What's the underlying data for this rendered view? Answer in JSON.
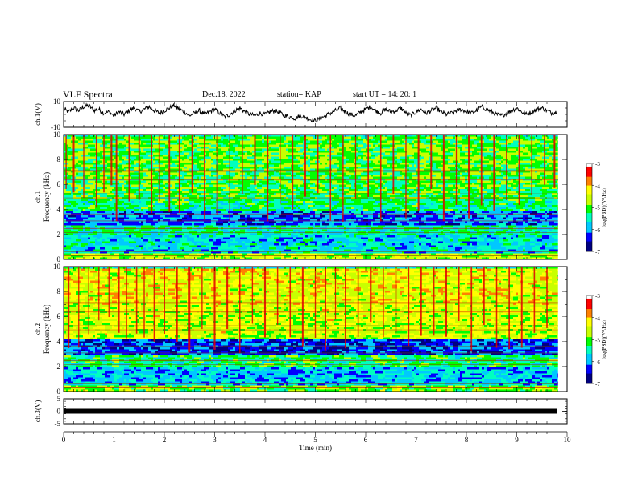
{
  "header": {
    "title": "VLF Spectra",
    "date": "Dec.18, 2022",
    "station": "station= KAP",
    "start": "start UT =  14: 20: 1"
  },
  "chart_data": [
    {
      "type": "line",
      "panel": "waveform-ch1",
      "ylabel": "ch.1(V)",
      "ylim": [
        -10,
        10
      ],
      "yticks": [
        "10",
        "-10"
      ],
      "xlim": [
        0,
        10
      ],
      "series": [
        {
          "x": [
            0,
            0.1,
            0.2,
            0.3,
            0.4,
            0.5,
            0.6,
            0.7,
            0.8,
            0.9,
            1.0,
            1.1,
            1.2,
            1.3,
            1.4,
            1.5,
            1.6,
            1.7,
            1.8,
            1.9,
            2.0,
            2.1,
            2.2,
            2.3,
            2.4,
            2.5,
            2.6,
            2.7,
            2.8,
            2.9,
            3.0,
            3.1,
            3.2,
            3.3,
            3.4,
            3.5,
            3.6,
            3.7,
            3.8,
            3.9,
            4.0,
            4.1,
            4.2,
            4.3,
            4.4,
            4.5,
            4.6,
            4.7,
            4.8,
            4.9,
            5.0,
            5.1,
            5.2,
            5.3,
            5.4,
            5.5,
            5.6,
            5.7,
            5.8,
            5.9,
            6.0,
            6.1,
            6.2,
            6.3,
            6.4,
            6.5,
            6.6,
            6.7,
            6.8,
            6.9,
            7.0,
            7.1,
            7.2,
            7.3,
            7.4,
            7.5,
            7.6,
            7.7,
            7.8,
            7.9,
            8.0,
            8.1,
            8.2,
            8.3,
            8.4,
            8.5,
            8.6,
            8.7,
            8.8,
            8.9,
            9.0,
            9.1,
            9.2,
            9.3,
            9.4,
            9.5,
            9.6,
            9.7,
            9.8
          ],
          "y": [
            4,
            2,
            5,
            3,
            6,
            7,
            3,
            4,
            1,
            2,
            -1,
            2,
            0,
            3,
            5,
            2,
            4,
            6,
            3,
            1,
            3,
            5,
            7,
            4,
            2,
            -1,
            1,
            3,
            0,
            2,
            4,
            1,
            -2,
            0,
            3,
            5,
            2,
            0,
            -1,
            1,
            0,
            2,
            3,
            1,
            -1,
            -2,
            -3,
            -1,
            -2,
            -4,
            -5,
            -3,
            -1,
            1,
            3,
            5,
            2,
            0,
            -1,
            2,
            4,
            6,
            3,
            1,
            4,
            2,
            3,
            5,
            1,
            -1,
            2,
            4,
            1,
            3,
            5,
            2,
            0,
            1,
            3,
            4,
            2,
            1,
            3,
            6,
            4,
            2,
            0,
            -1,
            1,
            3,
            5,
            2,
            0,
            2,
            4,
            5,
            3,
            1,
            2
          ]
        }
      ]
    },
    {
      "type": "heatmap",
      "panel": "spectrogram-ch1",
      "ylabel": "ch.1\nFrequency (kHz)",
      "ylim": [
        0,
        10
      ],
      "yticks": [
        "0",
        "2",
        "4",
        "6",
        "8",
        "10"
      ],
      "xlim": [
        0,
        10
      ],
      "colorbar": {
        "label": "log(PSD)(V²/Hz)",
        "range": [
          -7,
          -3
        ],
        "ticks": [
          "-3",
          "-4",
          "-5",
          "-6",
          "-7"
        ]
      },
      "band_levels": [
        {
          "f_min": 0,
          "f_max": 0.5,
          "level": 0.62
        },
        {
          "f_min": 0.5,
          "f_max": 2,
          "level": 0.33
        },
        {
          "f_min": 2,
          "f_max": 2.8,
          "level": 0.4
        },
        {
          "f_min": 2.8,
          "f_max": 4,
          "level": 0.22
        },
        {
          "f_min": 4,
          "f_max": 5,
          "level": 0.43
        },
        {
          "f_min": 5,
          "f_max": 7,
          "level": 0.5
        },
        {
          "f_min": 7,
          "f_max": 10,
          "level": 0.52
        }
      ],
      "impulse_times": [
        0.05,
        0.2,
        0.4,
        0.65,
        0.8,
        0.95,
        1.05,
        1.3,
        1.5,
        1.75,
        1.9,
        2.1,
        2.3,
        2.55,
        2.8,
        3.05,
        3.3,
        3.55,
        3.8,
        4.05,
        4.3,
        4.55,
        4.8,
        5.05,
        5.3,
        5.55,
        5.8,
        6.05,
        6.3,
        6.55,
        6.8,
        7.05,
        7.3,
        7.55,
        7.8,
        8.05,
        8.3,
        8.55,
        8.8,
        9.05,
        9.3,
        9.55,
        9.75
      ]
    },
    {
      "type": "heatmap",
      "panel": "spectrogram-ch2",
      "ylabel": "ch.2\nFrequency (kHz)",
      "ylim": [
        0,
        10
      ],
      "yticks": [
        "0",
        "2",
        "4",
        "6",
        "8",
        "10"
      ],
      "xlim": [
        0,
        10
      ],
      "colorbar": {
        "label": "log(PSD)(V²/Hz)",
        "range": [
          -7,
          -3
        ],
        "ticks": [
          "-3",
          "-4",
          "-5",
          "-6",
          "-7"
        ]
      },
      "band_levels": [
        {
          "f_min": 0,
          "f_max": 0.5,
          "level": 0.55
        },
        {
          "f_min": 0.5,
          "f_max": 2,
          "level": 0.3
        },
        {
          "f_min": 2,
          "f_max": 3,
          "level": 0.45
        },
        {
          "f_min": 3,
          "f_max": 4.3,
          "level": 0.18
        },
        {
          "f_min": 4.3,
          "f_max": 7,
          "level": 0.64
        },
        {
          "f_min": 7,
          "f_max": 10,
          "level": 0.68
        }
      ],
      "impulse_times": [
        0.1,
        0.3,
        0.5,
        0.7,
        0.9,
        1.1,
        1.25,
        1.45,
        1.6,
        1.8,
        2.0,
        2.25,
        2.5,
        2.75,
        3.0,
        3.25,
        3.5,
        3.75,
        4.0,
        4.25,
        4.5,
        4.75,
        5.0,
        5.2,
        5.4,
        5.6,
        5.85,
        6.1,
        6.35,
        6.6,
        6.85,
        7.1,
        7.35,
        7.6,
        7.85,
        8.1,
        8.35,
        8.6,
        8.85,
        9.1,
        9.35,
        9.6
      ]
    },
    {
      "type": "line",
      "panel": "waveform-ch3",
      "ylabel": "ch.3(V)",
      "ylim": [
        -5,
        5
      ],
      "yticks": [
        "5",
        "0",
        "-5"
      ],
      "xlim": [
        0,
        10
      ],
      "xlabel": "Time (min)",
      "xticks": [
        "0",
        "1",
        "2",
        "3",
        "4",
        "5",
        "6",
        "7",
        "8",
        "9",
        "10"
      ],
      "series": [
        {
          "x": [
            0,
            9.8
          ],
          "y": [
            0,
            0
          ]
        }
      ]
    }
  ],
  "colors": {
    "colormap": [
      "#000080",
      "#0000ff",
      "#00c8ff",
      "#00ffc0",
      "#00ff00",
      "#c8ff00",
      "#ffff00",
      "#ff8000",
      "#ff0000",
      "#ffffff"
    ],
    "line": "#000000"
  }
}
